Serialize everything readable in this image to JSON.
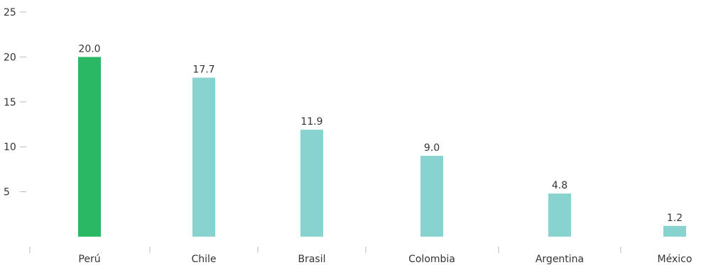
{
  "chart_data": {
    "type": "bar",
    "categories": [
      "Perú",
      "Chile",
      "Brasil",
      "Colombia",
      "Argentina",
      "México"
    ],
    "values": [
      20.0,
      17.7,
      11.9,
      9.0,
      4.8,
      1.2
    ],
    "value_labels": [
      "20.0",
      "17.7",
      "11.9",
      "9.0",
      "4.8",
      "1.2"
    ],
    "y_ticks": [
      5,
      10,
      15,
      20,
      25
    ],
    "ylim": [
      0,
      25
    ],
    "grid": false,
    "legend": "none",
    "highlight_color": "#2bb865",
    "bar_color": "#88d3cf",
    "highlight_index": 0
  }
}
